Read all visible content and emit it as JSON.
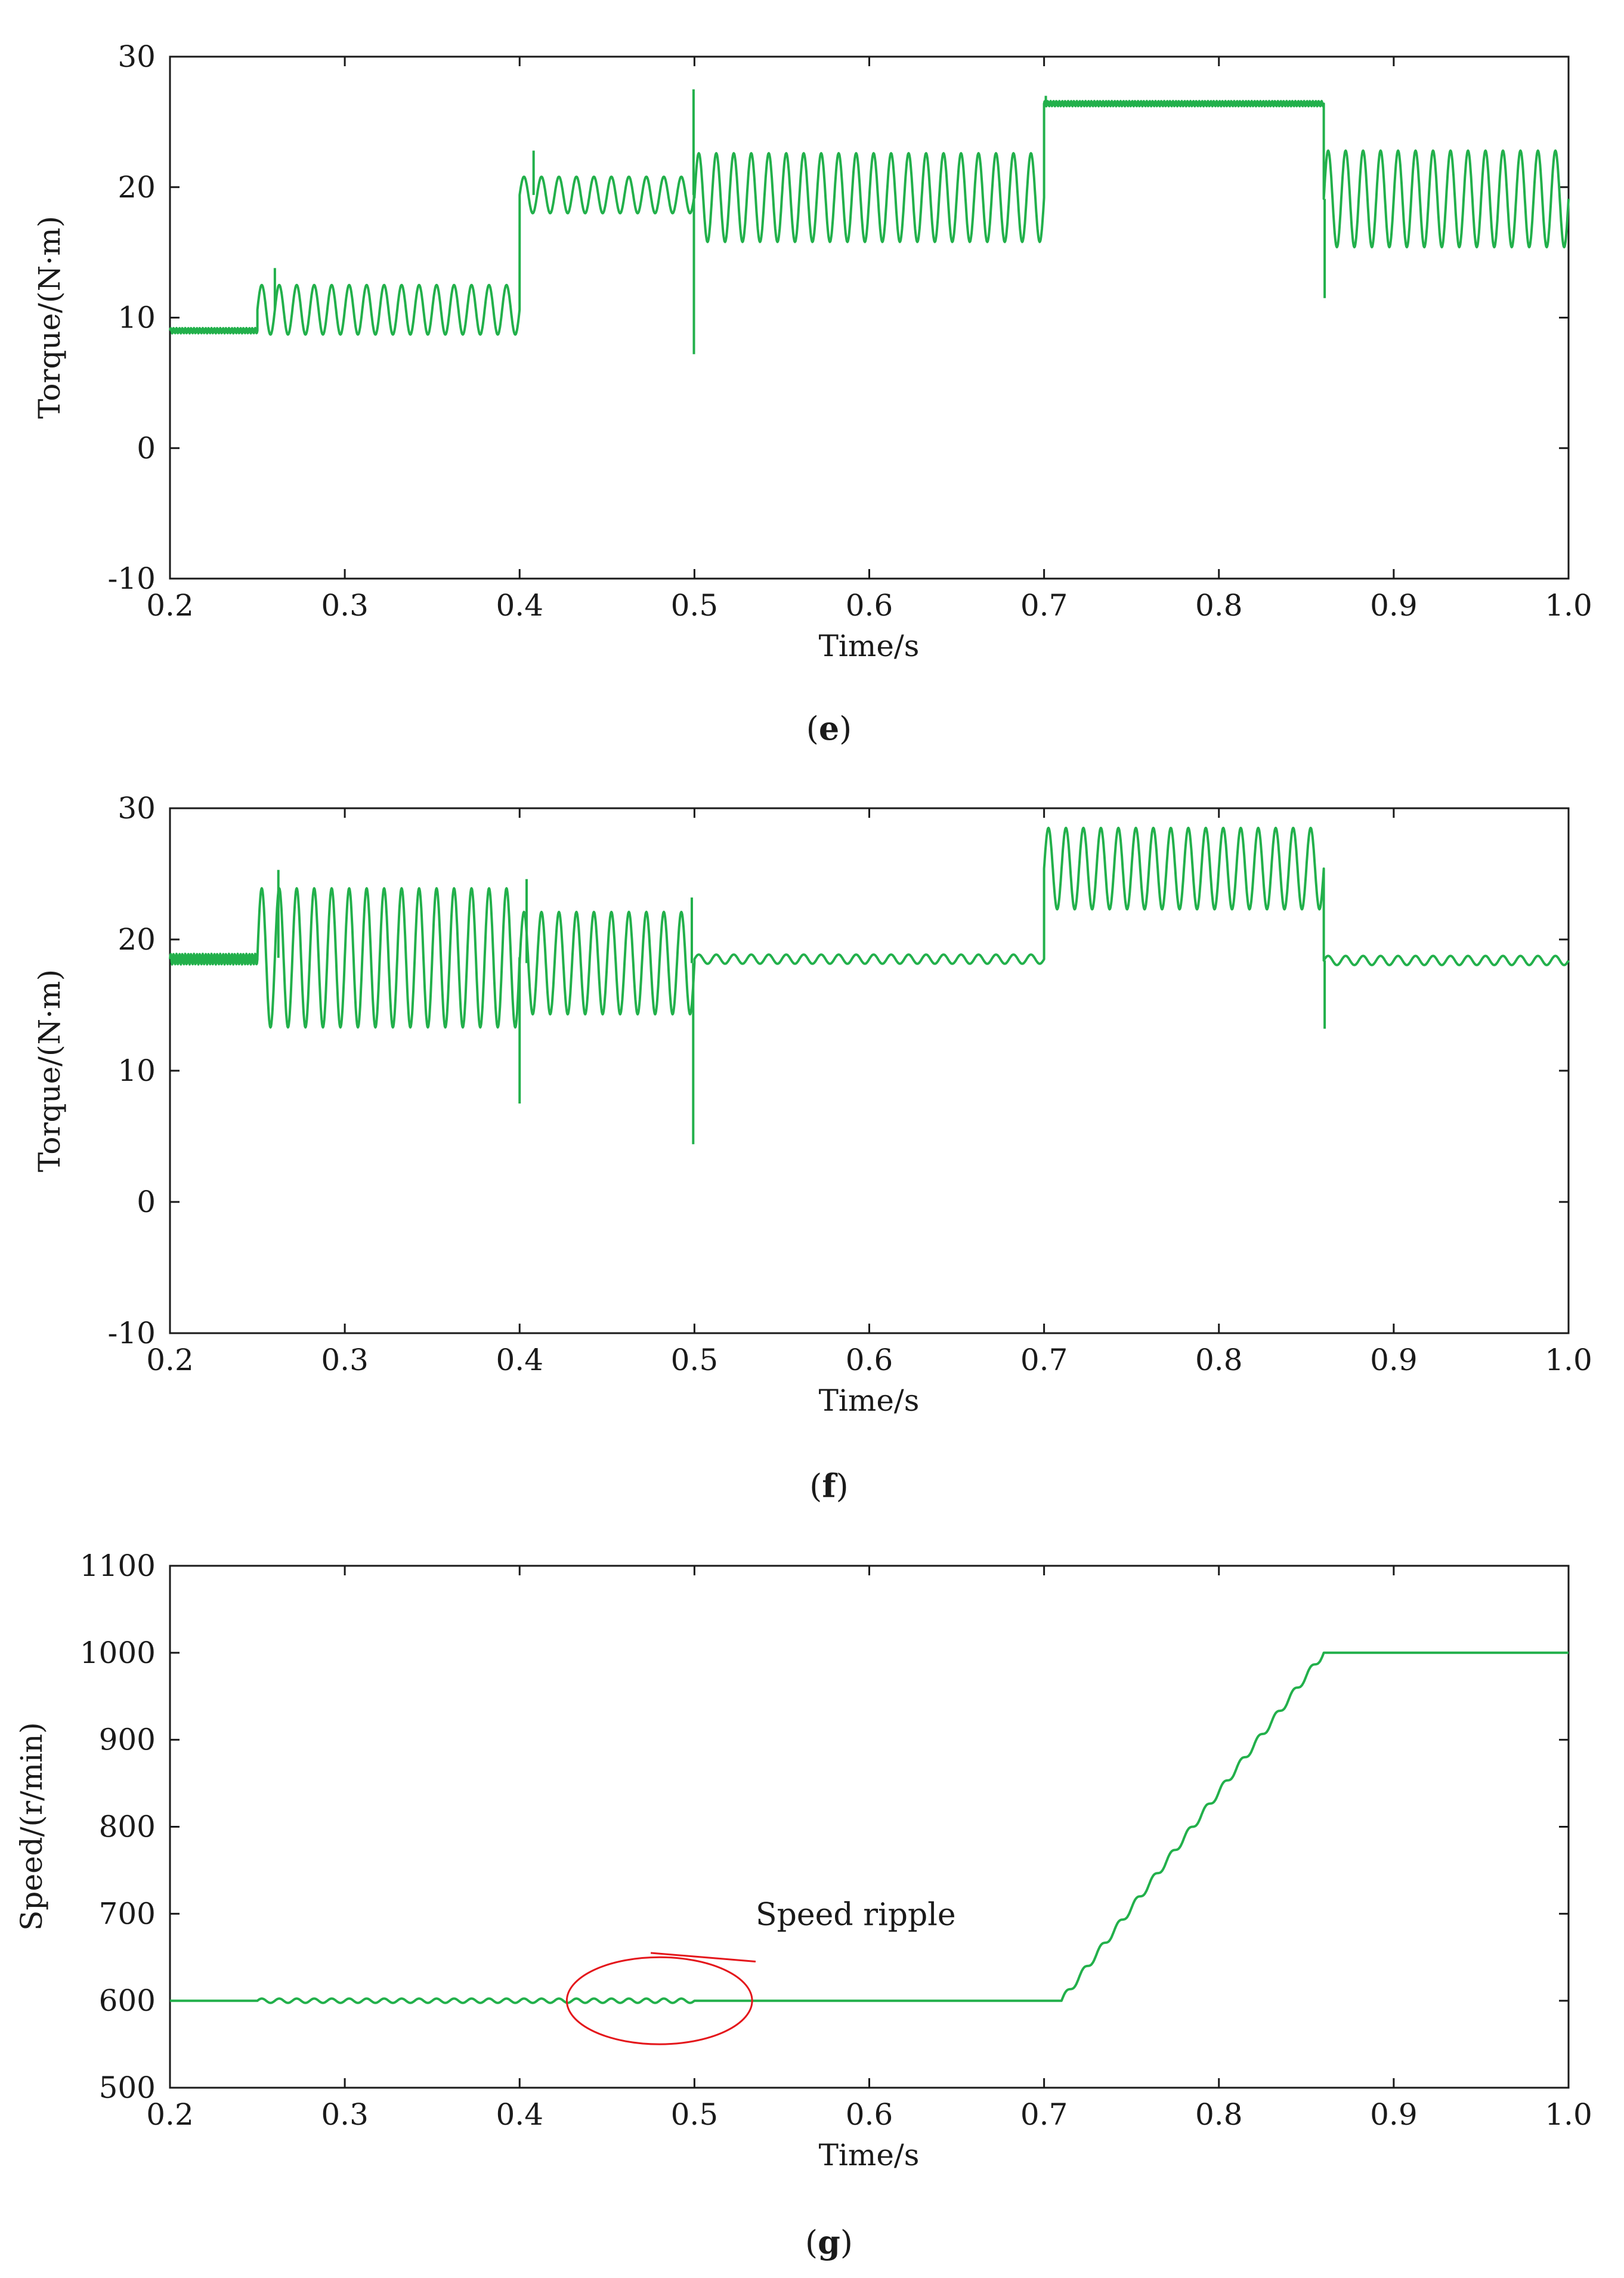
{
  "colors": {
    "series": "#22b04b",
    "axis": "#1a1a1a",
    "annotation": "#e4161b"
  },
  "chart_data": [
    {
      "id": "e",
      "type": "line",
      "panel_label": "e",
      "xlabel": "Time/s",
      "ylabel": "Torque/(N·m)",
      "xlim": [
        0.2,
        1.0
      ],
      "ylim": [
        -10,
        30
      ],
      "xticks": [
        "0.2",
        "0.3",
        "0.4",
        "0.5",
        "0.6",
        "0.7",
        "0.8",
        "0.9",
        "1.0"
      ],
      "yticks": [
        "-10",
        "0",
        "10",
        "20",
        "30"
      ],
      "segments": [
        {
          "t0": 0.2,
          "t1": 0.25,
          "mean": 9.0,
          "amp": 0.2,
          "freq": 600
        },
        {
          "t0": 0.25,
          "t1": 0.4,
          "mean": 10.6,
          "amp": 1.9,
          "freq": 100
        },
        {
          "t0": 0.4,
          "t1": 0.5,
          "mean": 19.4,
          "amp": 1.4,
          "freq": 100
        },
        {
          "t0": 0.5,
          "t1": 0.7,
          "mean": 19.2,
          "amp": 3.4,
          "freq": 100
        },
        {
          "t0": 0.7,
          "t1": 0.86,
          "mean": 26.4,
          "amp": 0.2,
          "freq": 600
        },
        {
          "t0": 0.86,
          "t1": 1.0,
          "mean": 19.1,
          "amp": 3.7,
          "freq": 100
        }
      ],
      "spikes": [
        {
          "t": 0.26,
          "value": 13.8
        },
        {
          "t": 0.408,
          "value": 22.8
        },
        {
          "t": 0.4995,
          "value": 27.5
        },
        {
          "t": 0.4997,
          "value": 7.2
        },
        {
          "t": 0.701,
          "value": 27.0
        },
        {
          "t": 0.8605,
          "value": 11.5
        }
      ]
    },
    {
      "id": "f",
      "type": "line",
      "panel_label": "f",
      "xlabel": "Time/s",
      "ylabel": "Torque/(N·m)",
      "xlim": [
        0.2,
        1.0
      ],
      "ylim": [
        -10,
        30
      ],
      "xticks": [
        "0.2",
        "0.3",
        "0.4",
        "0.5",
        "0.6",
        "0.7",
        "0.8",
        "0.9",
        "1.0"
      ],
      "yticks": [
        "-10",
        "0",
        "10",
        "20",
        "30"
      ],
      "segments": [
        {
          "t0": 0.2,
          "t1": 0.25,
          "mean": 18.5,
          "amp": 0.4,
          "freq": 600
        },
        {
          "t0": 0.25,
          "t1": 0.4,
          "mean": 18.6,
          "amp": 5.3,
          "freq": 100
        },
        {
          "t0": 0.4,
          "t1": 0.5,
          "mean": 18.2,
          "amp": 3.9,
          "freq": 100
        },
        {
          "t0": 0.5,
          "t1": 0.7,
          "mean": 18.5,
          "amp": 0.35,
          "freq": 100
        },
        {
          "t0": 0.7,
          "t1": 0.86,
          "mean": 25.4,
          "amp": 3.1,
          "freq": 100
        },
        {
          "t0": 0.86,
          "t1": 1.0,
          "mean": 18.4,
          "amp": 0.35,
          "freq": 100
        }
      ],
      "spikes": [
        {
          "t": 0.262,
          "value": 25.3
        },
        {
          "t": 0.4,
          "value": 7.5
        },
        {
          "t": 0.404,
          "value": 24.6
        },
        {
          "t": 0.4985,
          "value": 23.2
        },
        {
          "t": 0.4993,
          "value": 4.4
        },
        {
          "t": 0.8605,
          "value": 13.2
        }
      ]
    },
    {
      "id": "g",
      "type": "line",
      "panel_label": "g",
      "xlabel": "Time/s",
      "ylabel": "Speed/(r/min)",
      "xlim": [
        0.2,
        1.0
      ],
      "ylim": [
        500,
        1100
      ],
      "xticks": [
        "0.2",
        "0.3",
        "0.4",
        "0.5",
        "0.6",
        "0.7",
        "0.8",
        "0.9",
        "1.0"
      ],
      "yticks": [
        "500",
        "600",
        "700",
        "800",
        "900",
        "1000",
        "1100"
      ],
      "points": [
        [
          0.2,
          600
        ],
        [
          0.25,
          600
        ],
        [
          0.5,
          600
        ],
        [
          0.71,
          600
        ],
        [
          0.86,
          1000
        ],
        [
          1.0,
          1000
        ]
      ],
      "ripple": {
        "t0": 0.25,
        "t1": 0.5,
        "amp": 2.5,
        "freq": 100
      },
      "staircase": {
        "t0": 0.71,
        "t1": 0.86,
        "amp": 4,
        "freq": 100
      },
      "annotation": {
        "text": "Speed ripple",
        "ellipse_center": [
          0.48,
          600
        ],
        "ellipse_rx": 0.053,
        "ellipse_ry": 50,
        "line_from": [
          0.535,
          645
        ],
        "line_to": [
          0.475,
          655
        ],
        "text_at": [
          0.535,
          687
        ]
      }
    }
  ]
}
